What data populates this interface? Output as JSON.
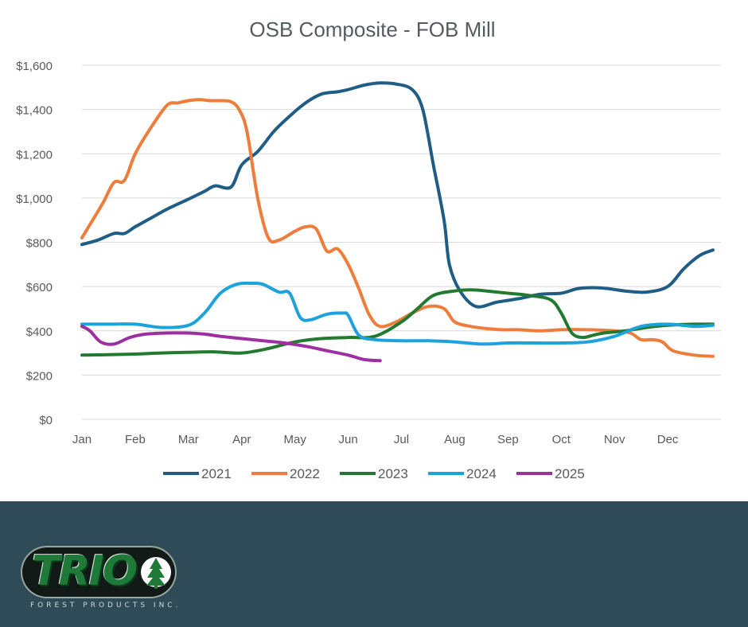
{
  "chart_data": {
    "type": "line",
    "title": "OSB Composite  - FOB Mill",
    "xlabel": "",
    "ylabel": "",
    "x_labels": [
      "Jan",
      "Feb",
      "Mar",
      "Apr",
      "May",
      "Jun",
      "Jul",
      "Aug",
      "Sep",
      "Oct",
      "Nov",
      "Dec"
    ],
    "x_range": [
      0,
      12
    ],
    "ylim": [
      0,
      1600
    ],
    "y_ticks": [
      0,
      200,
      400,
      600,
      800,
      1000,
      1200,
      1400,
      1600
    ],
    "y_tick_labels": [
      "$0",
      "$200",
      "$400",
      "$600",
      "$800",
      "$1,000",
      "$1,200",
      "$1,400",
      "$1,600"
    ],
    "grid": "horizontal",
    "legend_position": "bottom",
    "series": [
      {
        "name": "2021",
        "color": "#1f5d85",
        "x": [
          0,
          0.3,
          0.6,
          0.8,
          1,
          1.3,
          1.6,
          2,
          2.3,
          2.5,
          2.8,
          3,
          3.3,
          3.6,
          3.9,
          4.2,
          4.5,
          4.8,
          5,
          5.3,
          5.6,
          5.9,
          6.2,
          6.4,
          6.6,
          6.8,
          6.9,
          7.1,
          7.4,
          7.8,
          8.2,
          8.6,
          9,
          9.3,
          9.6,
          9.9,
          10.2,
          10.6,
          11,
          11.3,
          11.6,
          11.85
        ],
        "y": [
          790,
          810,
          840,
          840,
          870,
          910,
          950,
          995,
          1030,
          1055,
          1050,
          1150,
          1210,
          1300,
          1370,
          1430,
          1470,
          1480,
          1490,
          1510,
          1520,
          1515,
          1490,
          1400,
          1150,
          900,
          700,
          580,
          510,
          530,
          545,
          565,
          570,
          590,
          595,
          590,
          580,
          575,
          600,
          680,
          740,
          765
        ]
      },
      {
        "name": "2022",
        "color": "#ee7d3b",
        "x": [
          0,
          0.2,
          0.4,
          0.6,
          0.8,
          1,
          1.3,
          1.6,
          1.8,
          2,
          2.2,
          2.4,
          2.6,
          2.8,
          2.95,
          3.1,
          3.3,
          3.5,
          3.7,
          4,
          4.2,
          4.4,
          4.6,
          4.8,
          5,
          5.2,
          5.4,
          5.6,
          5.9,
          6.2,
          6.5,
          6.8,
          7,
          7.3,
          7.6,
          7.9,
          8.2,
          8.6,
          9,
          9.5,
          10,
          10.3,
          10.5,
          10.7,
          10.9,
          11.1,
          11.5,
          11.85
        ],
        "y": [
          820,
          900,
          980,
          1070,
          1080,
          1200,
          1320,
          1420,
          1430,
          1440,
          1445,
          1440,
          1440,
          1435,
          1400,
          1300,
          1000,
          820,
          810,
          850,
          870,
          860,
          760,
          770,
          700,
          590,
          470,
          420,
          440,
          480,
          510,
          500,
          440,
          420,
          410,
          405,
          405,
          400,
          405,
          405,
          400,
          390,
          360,
          360,
          350,
          310,
          290,
          285
        ]
      },
      {
        "name": "2023",
        "color": "#227a30",
        "x": [
          0,
          0.5,
          1,
          1.5,
          2,
          2.5,
          3,
          3.5,
          4,
          4.5,
          5,
          5.5,
          6,
          6.3,
          6.6,
          7,
          7.3,
          7.6,
          8,
          8.4,
          8.8,
          9,
          9.2,
          9.4,
          9.6,
          9.8,
          10.2,
          10.6,
          11,
          11.5,
          11.85
        ],
        "y": [
          290,
          292,
          295,
          300,
          303,
          305,
          300,
          320,
          350,
          365,
          370,
          375,
          440,
          500,
          560,
          580,
          585,
          580,
          570,
          560,
          540,
          480,
          390,
          370,
          380,
          390,
          400,
          415,
          425,
          430,
          430
        ]
      },
      {
        "name": "2024",
        "color": "#1ea2db",
        "x": [
          0,
          0.5,
          1,
          1.5,
          2,
          2.3,
          2.6,
          2.9,
          3.2,
          3.4,
          3.7,
          3.9,
          4.1,
          4.3,
          4.6,
          4.9,
          5,
          5.2,
          5.5,
          6,
          6.5,
          7,
          7.5,
          8,
          8.5,
          9,
          9.5,
          10,
          10.5,
          11,
          11.5,
          11.85
        ],
        "y": [
          430,
          430,
          430,
          415,
          425,
          480,
          570,
          610,
          615,
          610,
          575,
          570,
          460,
          450,
          475,
          480,
          470,
          380,
          360,
          355,
          355,
          350,
          340,
          345,
          345,
          345,
          350,
          375,
          420,
          430,
          420,
          425
        ]
      },
      {
        "name": "2025",
        "color": "#9e2fa3",
        "x": [
          0,
          0.15,
          0.35,
          0.6,
          0.9,
          1.2,
          1.6,
          2,
          2.3,
          2.6,
          3,
          3.4,
          3.8,
          4.2,
          4.6,
          5,
          5.3,
          5.6
        ],
        "y": [
          420,
          400,
          350,
          340,
          370,
          385,
          390,
          390,
          385,
          375,
          365,
          355,
          345,
          330,
          310,
          290,
          270,
          265
        ]
      }
    ]
  },
  "brand": {
    "logo_word": "TRIO",
    "logo_subtitle": "FOREST PRODUCTS INC.",
    "footer_color": "#2f4b57",
    "logo_green": "#1f7a3a"
  }
}
